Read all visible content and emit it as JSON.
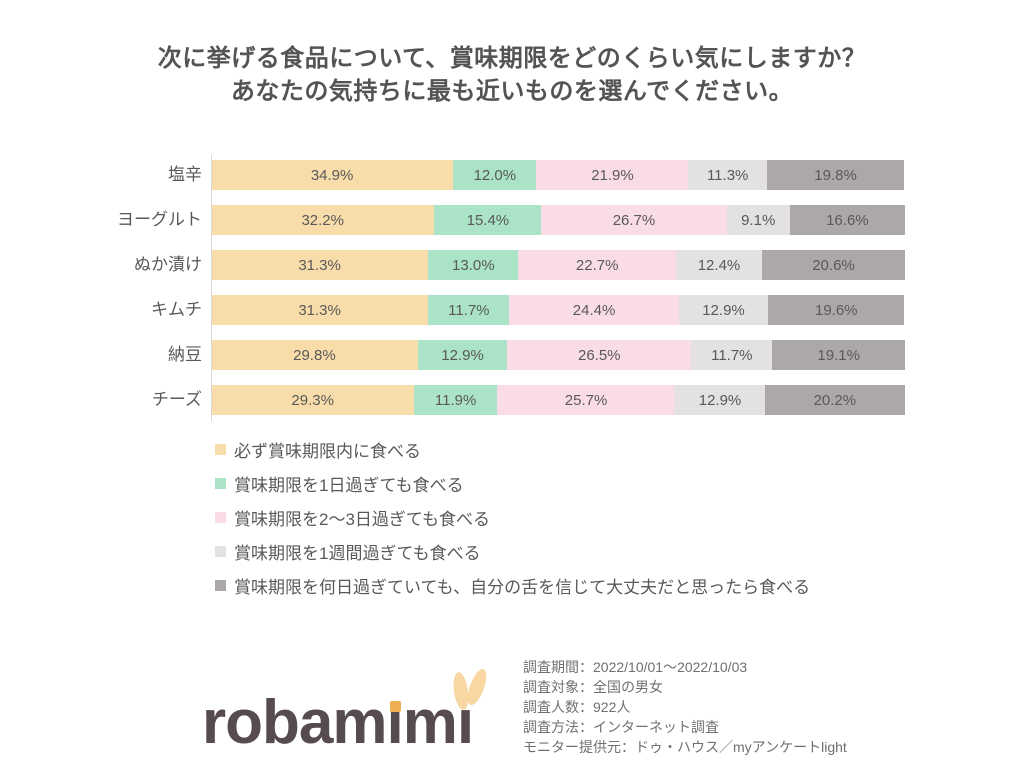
{
  "title": {
    "line1": "次に挙げる食品について、賞味期限をどのくらい気にしますか？",
    "line2": "あなたの気持ちに最も近いものを選んでください。"
  },
  "chart_data": {
    "type": "bar",
    "orientation": "horizontal",
    "stacked": true,
    "unit": "%",
    "xlim": [
      0,
      100
    ],
    "grid": false,
    "legend_position": "bottom-left",
    "value_label_suffix": "%",
    "categories": [
      "塩辛",
      "ヨーグルト",
      "ぬか漬け",
      "キムチ",
      "納豆",
      "チーズ"
    ],
    "series": [
      {
        "name": "必ず賞味期限内に食べる",
        "color": "#F8DDAB",
        "values": [
          34.9,
          32.2,
          31.3,
          31.3,
          29.8,
          29.3
        ]
      },
      {
        "name": "賞味期限を1日過ぎても食べる",
        "color": "#AAE3C6",
        "values": [
          12.0,
          15.4,
          13.0,
          11.7,
          12.9,
          11.9
        ]
      },
      {
        "name": "賞味期限を2～3日過ぎても食べる",
        "color": "#FADCE7",
        "values": [
          21.9,
          26.7,
          22.7,
          24.4,
          26.5,
          25.7
        ]
      },
      {
        "name": "賞味期限を1週間過ぎても食べる",
        "color": "#E3E1E2",
        "values": [
          11.3,
          9.1,
          12.4,
          12.9,
          11.7,
          12.9
        ]
      },
      {
        "name": "賞味期限を何日過ぎていても、自分の舌を信じて大丈夫だと思ったら食べる",
        "color": "#ACA8A9",
        "values": [
          19.8,
          16.6,
          20.6,
          19.6,
          19.1,
          20.2
        ]
      }
    ]
  },
  "logo": {
    "text": "robamimi",
    "text_color": "#564B4E",
    "accent_dot_color": "#F0B052",
    "ear_color": "#F8D7A3"
  },
  "survey_info": {
    "lines": [
      "調査期間：2022/10/01～2022/10/03",
      "調査対象：全国の男女",
      "調査人数：922人",
      "調査方法：インターネット調査",
      "モニター提供元：ドゥ・ハウス／myアンケートlight"
    ]
  }
}
